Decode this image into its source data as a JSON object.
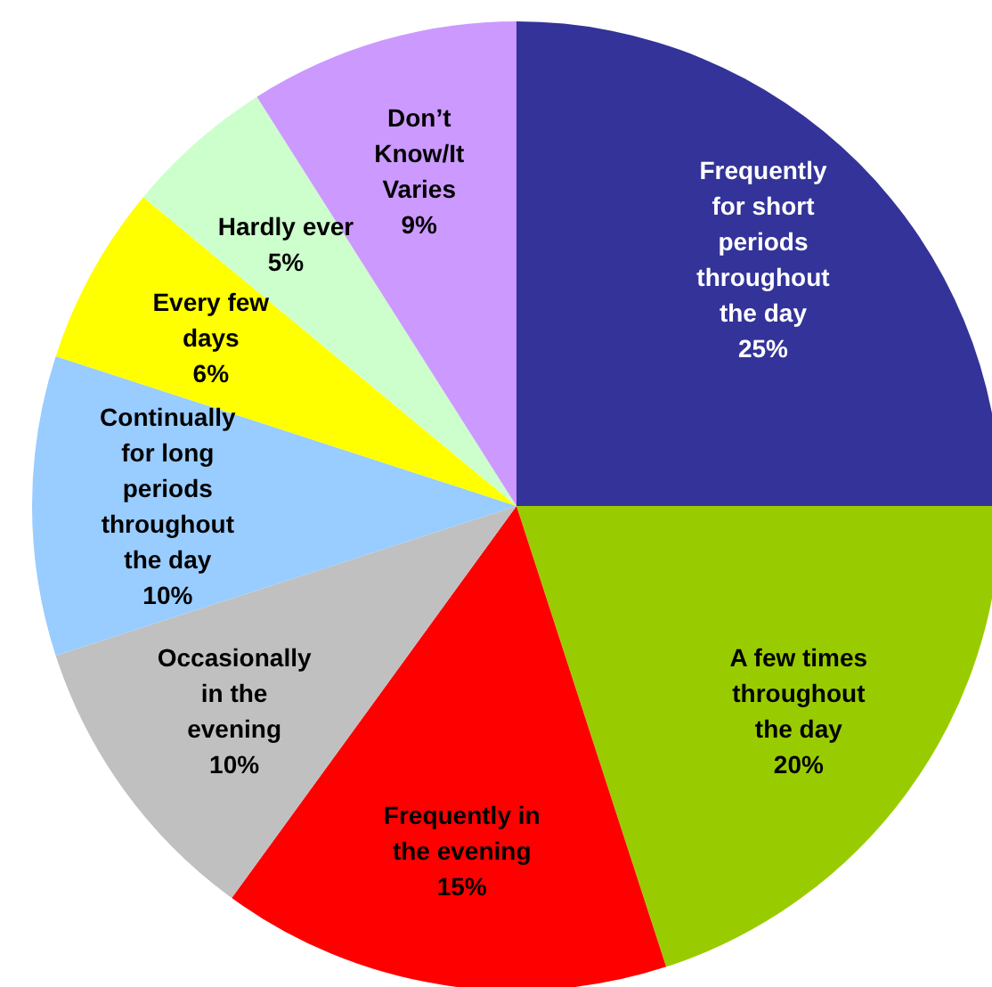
{
  "chart_data": {
    "type": "pie",
    "categories": [
      "Frequently for short periods throughout the day",
      "A few times throughout the day",
      "Frequently in the evening",
      "Occasionally in the evening",
      "Continually for long periods throughout the day",
      "Every few days",
      "Hardly ever",
      "Don’t Know/It Varies"
    ],
    "values": [
      25,
      20,
      15,
      10,
      10,
      6,
      5,
      9
    ],
    "colors": [
      "#333399",
      "#99cc00",
      "#ff0000",
      "#c0c0c0",
      "#99ccff",
      "#ffff00",
      "#ccffcc",
      "#cc99ff"
    ],
    "value_labels": [
      "25%",
      "20%",
      "15%",
      "10%",
      "10%",
      "6%",
      "5%",
      "9%"
    ]
  }
}
